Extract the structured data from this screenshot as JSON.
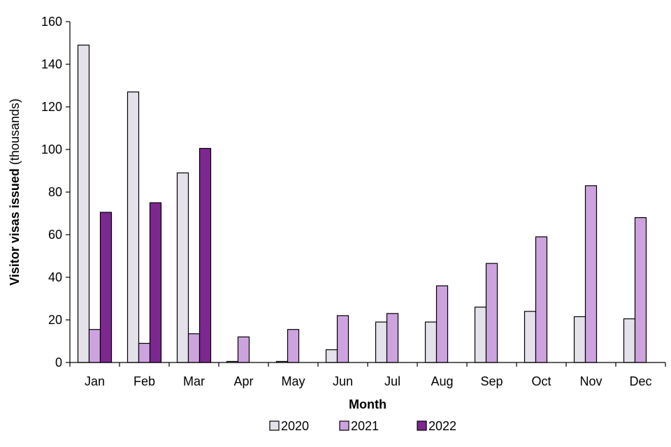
{
  "chart_data": {
    "type": "bar",
    "categories": [
      "Jan",
      "Feb",
      "Mar",
      "Apr",
      "May",
      "Jun",
      "Jul",
      "Aug",
      "Sep",
      "Oct",
      "Nov",
      "Dec"
    ],
    "series": [
      {
        "name": "2020",
        "color": "#e4e1eb",
        "values": [
          149,
          127,
          89,
          0.5,
          0.5,
          6,
          19,
          19,
          26,
          24,
          21.5,
          20.5
        ]
      },
      {
        "name": "2021",
        "color": "#cda3df",
        "values": [
          15.5,
          9,
          13.5,
          12,
          15.5,
          22,
          23,
          36,
          46.5,
          59,
          83,
          68
        ]
      },
      {
        "name": "2022",
        "color": "#7d2790",
        "values": [
          70.5,
          75,
          100.5,
          null,
          null,
          null,
          null,
          null,
          null,
          null,
          null,
          null
        ]
      }
    ],
    "xlabel": "Month",
    "ylabel_bold": "Visitor visas issued",
    "ylabel_normal": " (thousands)",
    "ylim": [
      0,
      160
    ],
    "yticks": [
      0,
      20,
      40,
      60,
      80,
      100,
      120,
      140,
      160
    ],
    "grid": false,
    "legend_position": "bottom"
  }
}
